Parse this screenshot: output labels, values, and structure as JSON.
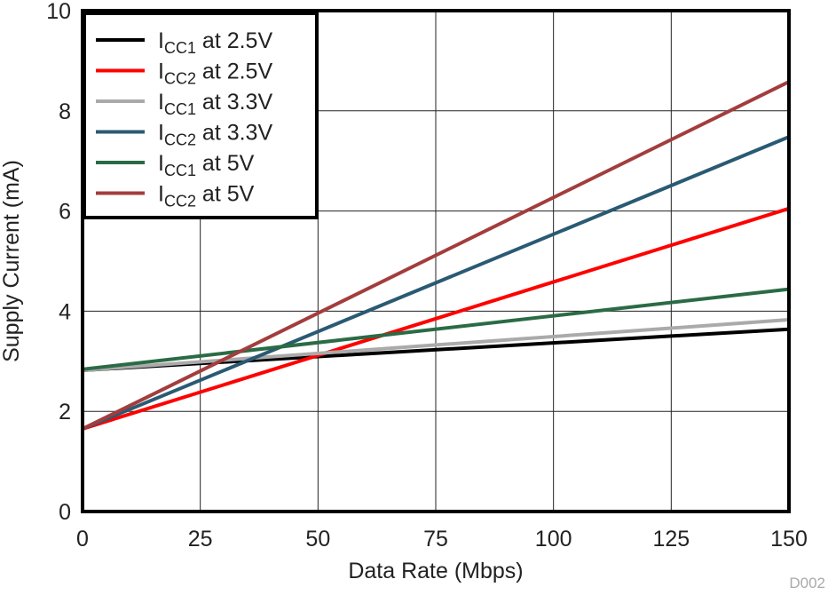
{
  "chart_data": {
    "type": "line",
    "title": "",
    "xlabel": "Data Rate (Mbps)",
    "ylabel": "Supply Current (mA)",
    "xlim": [
      0,
      150
    ],
    "ylim": [
      0,
      10
    ],
    "xticks": [
      0,
      25,
      50,
      75,
      100,
      125,
      150
    ],
    "yticks": [
      0,
      2,
      4,
      6,
      8,
      10
    ],
    "grid": true,
    "legend_position": "top-left",
    "watermark": "D002",
    "series": [
      {
        "name": "ICC1 at 2.5V",
        "label_main": "I",
        "label_sub": "CC1",
        "label_rest": " at 2.5V",
        "color": "#000000",
        "x": [
          0,
          150
        ],
        "y": [
          2.82,
          3.64
        ]
      },
      {
        "name": "ICC2 at 2.5V",
        "label_main": "I",
        "label_sub": "CC2",
        "label_rest": " at 2.5V",
        "color": "#ff0000",
        "x": [
          0,
          150
        ],
        "y": [
          1.65,
          6.05
        ]
      },
      {
        "name": "ICC1 at 3.3V",
        "label_main": "I",
        "label_sub": "CC1",
        "label_rest": " at 3.3V",
        "color": "#aaaaaa",
        "x": [
          0,
          150
        ],
        "y": [
          2.82,
          3.83
        ]
      },
      {
        "name": "ICC2  at 3.3V",
        "label_main": "I",
        "label_sub": "CC2",
        "label_rest": "  at 3.3V",
        "color": "#2a5a73",
        "x": [
          0,
          150
        ],
        "y": [
          1.65,
          7.48
        ]
      },
      {
        "name": "ICC1 at 5V",
        "label_main": "I",
        "label_sub": "CC1",
        "label_rest": " at 5V",
        "color": "#2a6b45",
        "x": [
          0,
          150
        ],
        "y": [
          2.84,
          4.44
        ]
      },
      {
        "name": "ICC2 at 5V",
        "label_main": "I",
        "label_sub": "CC2",
        "label_rest": " at 5V",
        "color": "#a33d3d",
        "x": [
          0,
          150
        ],
        "y": [
          1.65,
          8.58
        ]
      }
    ]
  }
}
